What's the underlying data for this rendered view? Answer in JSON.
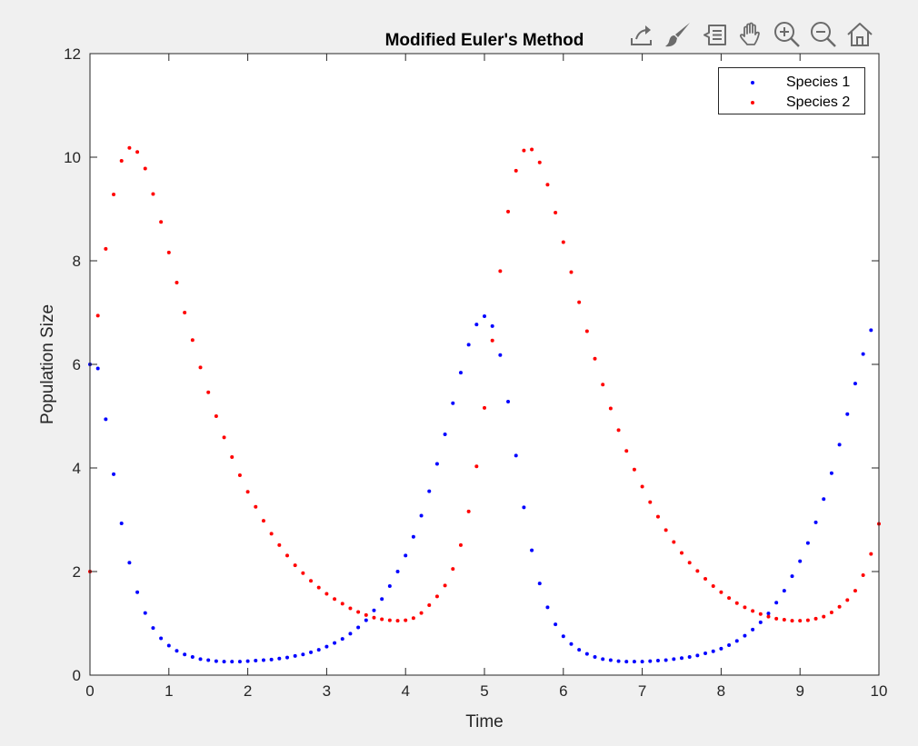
{
  "toolbar": {
    "icons": [
      "export-icon",
      "brush-icon",
      "data-tips-icon",
      "pan-hand-icon",
      "zoom-in-icon",
      "zoom-out-icon",
      "home-icon"
    ]
  },
  "colors": {
    "species1": "#0000ff",
    "species2": "#ff0000",
    "axes_bg": "#ffffff",
    "figure_bg": "#f0f0f0"
  },
  "chart_data": {
    "type": "scatter",
    "title": "Modified Euler's Method",
    "xlabel": "Time",
    "ylabel": "Population Size",
    "xlim": [
      0,
      10
    ],
    "ylim": [
      0,
      12
    ],
    "xticks": [
      0,
      1,
      2,
      3,
      4,
      5,
      6,
      7,
      8,
      9,
      10
    ],
    "yticks": [
      0,
      2,
      4,
      6,
      8,
      10,
      12
    ],
    "grid": false,
    "legend_position": "top-right",
    "x": [
      0.0,
      0.1,
      0.2,
      0.3,
      0.4,
      0.5,
      0.6,
      0.7,
      0.8,
      0.9,
      1.0,
      1.1,
      1.2,
      1.3,
      1.4,
      1.5,
      1.6,
      1.7,
      1.8,
      1.9,
      2.0,
      2.1,
      2.2,
      2.3,
      2.4,
      2.5,
      2.6,
      2.7,
      2.8,
      2.9,
      3.0,
      3.1,
      3.2,
      3.3,
      3.4,
      3.5,
      3.6,
      3.7,
      3.8,
      3.9,
      4.0,
      4.1,
      4.2,
      4.3,
      4.4,
      4.5,
      4.6,
      4.7,
      4.8,
      4.9,
      5.0,
      5.1,
      5.2,
      5.3,
      5.4,
      5.5,
      5.6,
      5.7,
      5.8,
      5.9,
      6.0,
      6.1,
      6.2,
      6.3,
      6.4,
      6.5,
      6.6,
      6.7,
      6.8,
      6.9,
      7.0,
      7.1,
      7.2,
      7.3,
      7.4,
      7.5,
      7.6,
      7.7,
      7.8,
      7.9,
      8.0,
      8.1,
      8.2,
      8.3,
      8.4,
      8.5,
      8.6,
      8.7,
      8.8,
      8.9,
      9.0,
      9.1,
      9.2,
      9.3,
      9.4,
      9.5,
      9.6,
      9.7,
      9.8,
      9.9,
      10.0
    ],
    "series": [
      {
        "name": "Species 1",
        "color": "#0000ff",
        "values": [
          6.0,
          5.92,
          4.94,
          3.88,
          2.93,
          2.17,
          1.6,
          1.2,
          0.91,
          0.71,
          0.57,
          0.47,
          0.4,
          0.35,
          0.31,
          0.29,
          0.27,
          0.26,
          0.26,
          0.26,
          0.27,
          0.28,
          0.29,
          0.3,
          0.32,
          0.34,
          0.37,
          0.4,
          0.44,
          0.49,
          0.55,
          0.62,
          0.7,
          0.8,
          0.92,
          1.06,
          1.25,
          1.47,
          1.72,
          2.0,
          2.31,
          2.67,
          3.08,
          3.55,
          4.08,
          4.65,
          5.25,
          5.84,
          6.38,
          6.77,
          6.93,
          6.74,
          6.18,
          5.28,
          4.24,
          3.24,
          2.41,
          1.77,
          1.31,
          0.98,
          0.75,
          0.6,
          0.49,
          0.41,
          0.35,
          0.31,
          0.29,
          0.27,
          0.26,
          0.26,
          0.26,
          0.27,
          0.28,
          0.29,
          0.31,
          0.33,
          0.35,
          0.38,
          0.42,
          0.46,
          0.51,
          0.58,
          0.66,
          0.76,
          0.88,
          1.02,
          1.19,
          1.4,
          1.63,
          1.91,
          2.2,
          2.55,
          2.95,
          3.4,
          3.9,
          4.45,
          5.04,
          5.63,
          6.2,
          6.66
        ]
      },
      {
        "name": "Species 2",
        "color": "#ff0000",
        "values": [
          2.0,
          6.94,
          8.23,
          9.28,
          9.93,
          10.18,
          10.1,
          9.78,
          9.29,
          8.75,
          8.16,
          7.58,
          7.0,
          6.47,
          5.94,
          5.46,
          5.0,
          4.59,
          4.21,
          3.86,
          3.54,
          3.25,
          2.98,
          2.73,
          2.51,
          2.31,
          2.12,
          1.97,
          1.82,
          1.69,
          1.57,
          1.47,
          1.38,
          1.29,
          1.22,
          1.16,
          1.11,
          1.08,
          1.06,
          1.05,
          1.06,
          1.1,
          1.2,
          1.35,
          1.52,
          1.73,
          2.05,
          2.51,
          3.16,
          4.03,
          5.16,
          6.46,
          7.8,
          8.95,
          9.74,
          10.13,
          10.15,
          9.9,
          9.47,
          8.93,
          8.36,
          7.78,
          7.2,
          6.64,
          6.11,
          5.61,
          5.15,
          4.73,
          4.33,
          3.97,
          3.64,
          3.34,
          3.06,
          2.8,
          2.57,
          2.36,
          2.17,
          2.01,
          1.86,
          1.72,
          1.6,
          1.49,
          1.39,
          1.31,
          1.24,
          1.18,
          1.13,
          1.09,
          1.07,
          1.05,
          1.05,
          1.06,
          1.09,
          1.13,
          1.21,
          1.32,
          1.45,
          1.63,
          1.93,
          2.34,
          2.92
        ]
      }
    ]
  }
}
